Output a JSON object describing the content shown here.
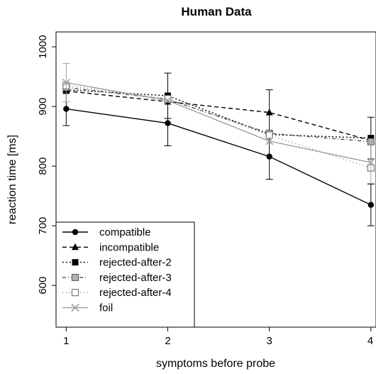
{
  "chart_data": {
    "type": "line",
    "title": "Human Data",
    "xlabel": "symptoms before probe",
    "ylabel": "reaction time [ms]",
    "x": [
      1,
      2,
      3,
      4
    ],
    "x_ticks": [
      "1",
      "2",
      "3",
      "4"
    ],
    "y_ticks": [
      "600",
      "700",
      "800",
      "900",
      "1000"
    ],
    "ylim": [
      530,
      1025
    ],
    "xlim": [
      0.9,
      4.05
    ],
    "grid": false,
    "legend_position": "bottom-left",
    "series": [
      {
        "name": "compatible",
        "values": [
          896,
          872,
          816,
          735
        ],
        "error": [
          28,
          38,
          38,
          35
        ],
        "color": "#000000",
        "dash": "",
        "marker": "filled-circle"
      },
      {
        "name": "incompatible",
        "values": [
          926,
          908,
          890,
          843
        ],
        "error": [
          0,
          0,
          38,
          0
        ],
        "color": "#000000",
        "dash": "6,4",
        "marker": "filled-triangle"
      },
      {
        "name": "rejected-after-2",
        "values": [
          928,
          918,
          853,
          847
        ],
        "error": [
          0,
          38,
          0,
          35
        ],
        "color": "#000000",
        "dash": "2,3",
        "marker": "filled-square"
      },
      {
        "name": "rejected-after-3",
        "values": [
          932,
          912,
          855,
          841
        ],
        "error": [
          0,
          0,
          0,
          0
        ],
        "color": "#555555",
        "dash": "5,3,1,3",
        "marker": "grey-square"
      },
      {
        "name": "rejected-after-4",
        "values": [
          935,
          913,
          852,
          797
        ],
        "error": [
          0,
          0,
          0,
          0
        ],
        "color": "#777777",
        "dash": "1,4",
        "marker": "open-square"
      },
      {
        "name": "foil",
        "values": [
          940,
          910,
          842,
          806
        ],
        "error": [
          32,
          0,
          0,
          35
        ],
        "color": "#a0a0a0",
        "dash": "",
        "marker": "x-cross"
      }
    ]
  }
}
